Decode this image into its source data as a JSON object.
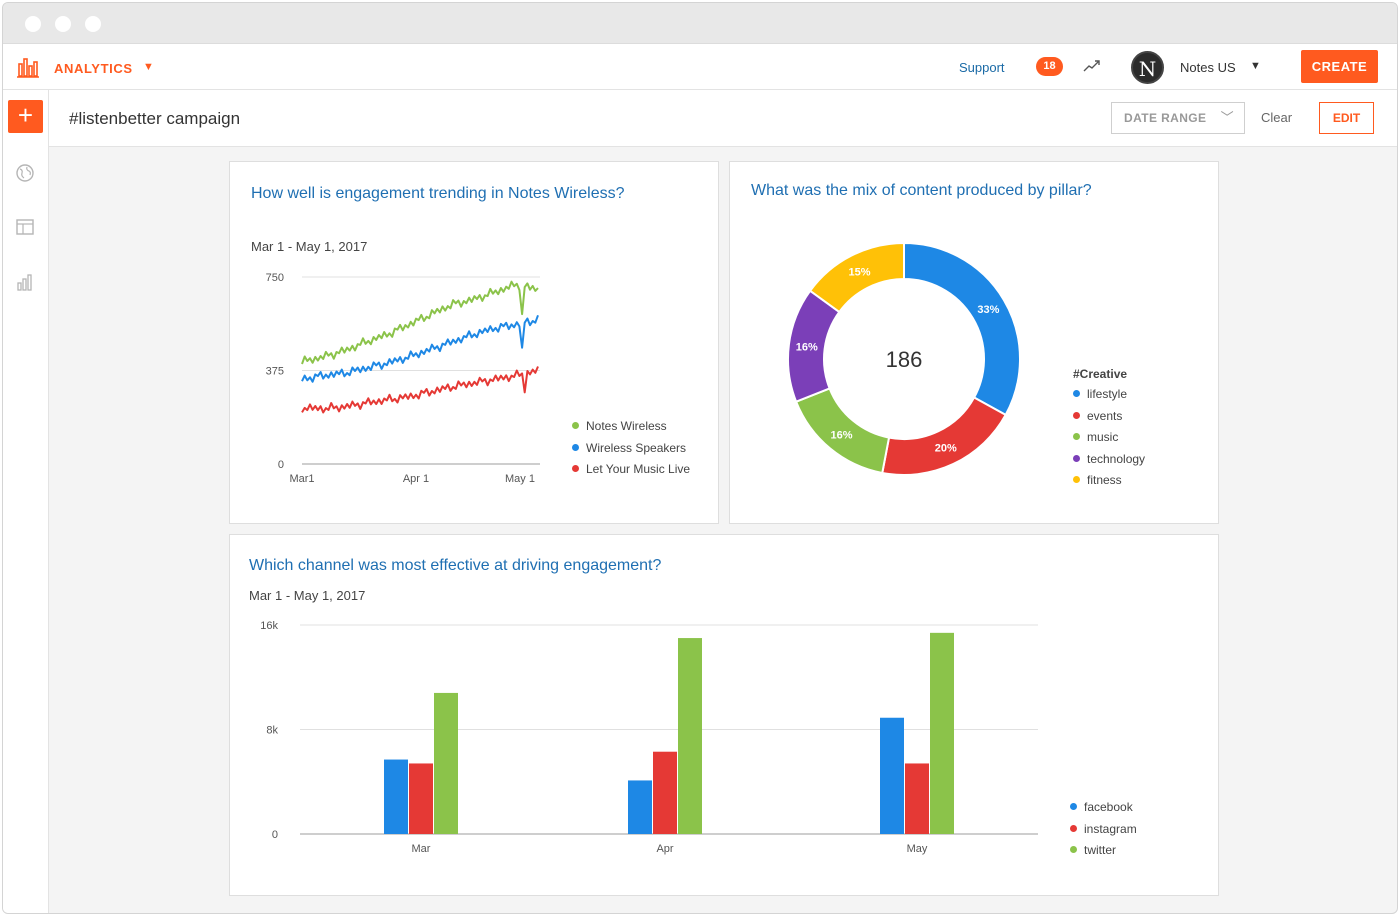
{
  "topnav": {
    "app_label": "ANALYTICS",
    "support_label": "Support",
    "notification_count": "18",
    "avatar_letter": "N",
    "account_name": "Notes US",
    "create_label": "CREATE"
  },
  "header": {
    "title": "#listenbetter campaign",
    "date_range_label": "DATE RANGE",
    "clear_label": "Clear",
    "edit_label": "EDIT"
  },
  "colors": {
    "brand": "#ff5a1f",
    "green": "#8bc34a",
    "blue": "#1e88e5",
    "red": "#e53935",
    "purple": "#7b3fb8",
    "yellow": "#ffc107",
    "title_blue": "#1f6fb2"
  },
  "icons": {
    "brand": "bar-chart-icon",
    "trend": "trend-line-icon",
    "sidebar": [
      "plus-icon",
      "globe-icon",
      "layout-icon",
      "bar-chart-icon"
    ]
  },
  "cards": {
    "engagement": {
      "title": "How well is engagement trending in Notes Wireless?",
      "subtitle": "Mar 1 - May 1, 2017"
    },
    "content_mix": {
      "title": "What was the mix of content produced by pillar?"
    },
    "channel": {
      "title": "Which channel was most effective at driving engagement?",
      "subtitle": "Mar 1 - May 1, 2017"
    }
  },
  "chart_data": [
    {
      "type": "line",
      "x_ticks": [
        "Mar1",
        "Apr 1",
        "May 1"
      ],
      "y_ticks": [
        "750",
        "375",
        "0"
      ],
      "ylim": [
        0,
        750
      ],
      "x_range": [
        "2017-03-01",
        "2017-05-10"
      ],
      "series": [
        {
          "name": "Notes Wireless",
          "color": "#8bc34a",
          "values": [
            410,
            430,
            455,
            490,
            520,
            560,
            600,
            640,
            660,
            690,
            720,
            700
          ]
        },
        {
          "name": "Wireless Speakers",
          "color": "#1e88e5",
          "values": [
            340,
            355,
            365,
            385,
            405,
            430,
            460,
            490,
            520,
            545,
            560,
            580
          ]
        },
        {
          "name": "Let Your Music Live",
          "color": "#e53935",
          "values": [
            225,
            222,
            230,
            245,
            258,
            270,
            290,
            310,
            325,
            340,
            355,
            375
          ]
        }
      ]
    },
    {
      "type": "pie",
      "center_label": "186",
      "legend_title": "#Creative",
      "slices": [
        {
          "name": "lifestyle",
          "value": 33,
          "label": "33%",
          "color": "#1e88e5"
        },
        {
          "name": "events",
          "value": 20,
          "label": "20%",
          "color": "#e53935"
        },
        {
          "name": "music",
          "value": 16,
          "label": "16%",
          "color": "#8bc34a"
        },
        {
          "name": "technology",
          "value": 16,
          "label": "16%",
          "color": "#7b3fb8"
        },
        {
          "name": "fitness",
          "value": 15,
          "label": "15%",
          "color": "#ffc107"
        }
      ]
    },
    {
      "type": "bar",
      "categories": [
        "Mar",
        "Apr",
        "May"
      ],
      "y_ticks": [
        "16k",
        "8k",
        "0"
      ],
      "ylim": [
        0,
        16000
      ],
      "series": [
        {
          "name": "facebook",
          "color": "#1e88e5",
          "values": [
            5700,
            4100,
            8900
          ]
        },
        {
          "name": "instagram",
          "color": "#e53935",
          "values": [
            5400,
            6300,
            5400
          ]
        },
        {
          "name": "twitter",
          "color": "#8bc34a",
          "values": [
            10800,
            15000,
            15400
          ]
        }
      ]
    }
  ]
}
